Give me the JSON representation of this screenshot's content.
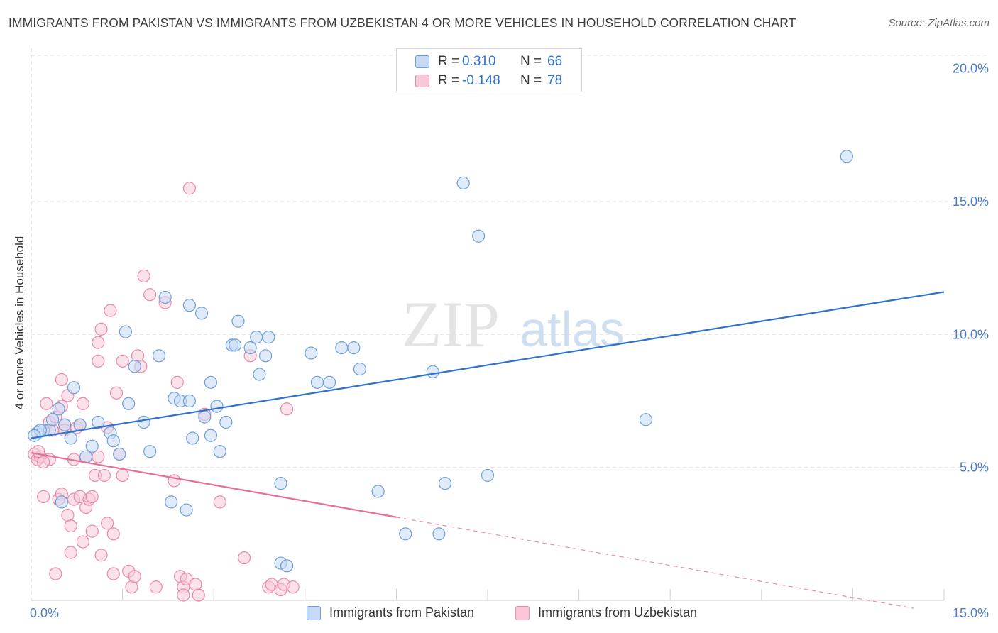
{
  "header": {
    "title": "IMMIGRANTS FROM PAKISTAN VS IMMIGRANTS FROM UZBEKISTAN 4 OR MORE VEHICLES IN HOUSEHOLD CORRELATION CHART",
    "source": "Source: ZipAtlas.com"
  },
  "watermark": {
    "zip": "ZIP",
    "atlas": "atlas"
  },
  "colors": {
    "blue_fill": "#c6daf5",
    "blue_stroke": "#6f9fd8",
    "blue_line": "#2f72cc",
    "pink_fill": "#f7c9d8",
    "pink_stroke": "#e98aaa",
    "pink_line": "#e46f98",
    "tick_text": "#4a7cc7",
    "grid": "#e2e2e2"
  },
  "legend": {
    "rows": [
      {
        "r_label": "R =",
        "r_value": "0.310",
        "n_label": "N =",
        "n_value": "66"
      },
      {
        "r_label": "R =",
        "r_value": "-0.148",
        "n_label": "N =",
        "n_value": "78"
      }
    ]
  },
  "bottom_legend": [
    {
      "label": "Immigrants from Pakistan"
    },
    {
      "label": "Immigrants from Uzbekistan"
    }
  ],
  "chart_data": {
    "type": "scatter",
    "title": "IMMIGRANTS FROM PAKISTAN VS IMMIGRANTS FROM UZBEKISTAN 4 OR MORE VEHICLES IN HOUSEHOLD CORRELATION CHART",
    "xlabel": "",
    "ylabel": "4 or more Vehicles in Household",
    "xlim": [
      0,
      15
    ],
    "ylim": [
      0,
      20.5
    ],
    "x_tick_labels": [
      {
        "value": 0,
        "label": "0.0%"
      },
      {
        "value": 15,
        "label": "15.0%"
      }
    ],
    "y_tick_labels": [
      {
        "value": 5,
        "label": "5.0%"
      },
      {
        "value": 10,
        "label": "10.0%"
      },
      {
        "value": 15,
        "label": "15.0%"
      },
      {
        "value": 20,
        "label": "20.0%"
      }
    ],
    "x_grid_values": [
      1.5,
      3.0,
      4.5,
      6.0,
      7.5,
      9.0,
      10.5,
      12.0,
      13.5,
      15.0
    ],
    "y_grid_values": [
      5,
      10,
      15,
      20.5
    ],
    "series": [
      {
        "name": "Immigrants from Pakistan",
        "color": "blue",
        "r": 0.31,
        "n": 66,
        "trend": {
          "x": [
            0,
            15
          ],
          "y": [
            6.1,
            11.6
          ],
          "dashed_from": null
        },
        "points": [
          [
            0.1,
            6.3
          ],
          [
            0.2,
            6.4
          ],
          [
            0.3,
            6.4
          ],
          [
            0.35,
            6.8
          ],
          [
            0.45,
            7.2
          ],
          [
            0.55,
            6.6
          ],
          [
            0.65,
            6.1
          ],
          [
            0.7,
            8.0
          ],
          [
            0.8,
            6.6
          ],
          [
            0.9,
            5.4
          ],
          [
            1.0,
            5.8
          ],
          [
            1.1,
            6.7
          ],
          [
            1.3,
            6.3
          ],
          [
            1.45,
            5.5
          ],
          [
            1.55,
            10.1
          ],
          [
            1.6,
            7.4
          ],
          [
            1.7,
            8.8
          ],
          [
            1.85,
            6.7
          ],
          [
            1.95,
            5.6
          ],
          [
            2.1,
            9.2
          ],
          [
            2.2,
            11.4
          ],
          [
            2.3,
            3.7
          ],
          [
            2.35,
            7.6
          ],
          [
            2.45,
            7.5
          ],
          [
            2.55,
            3.4
          ],
          [
            2.6,
            7.5
          ],
          [
            2.6,
            11.1
          ],
          [
            2.65,
            6.1
          ],
          [
            2.8,
            10.8
          ],
          [
            2.85,
            6.9
          ],
          [
            2.95,
            6.2
          ],
          [
            2.95,
            8.2
          ],
          [
            3.05,
            7.3
          ],
          [
            3.1,
            5.6
          ],
          [
            3.2,
            6.7
          ],
          [
            3.3,
            9.6
          ],
          [
            3.35,
            9.6
          ],
          [
            3.4,
            10.5
          ],
          [
            3.6,
            9.5
          ],
          [
            3.7,
            9.9
          ],
          [
            3.75,
            8.5
          ],
          [
            3.85,
            9.2
          ],
          [
            3.9,
            9.9
          ],
          [
            4.1,
            1.4
          ],
          [
            4.1,
            4.4
          ],
          [
            4.2,
            1.3
          ],
          [
            4.6,
            9.3
          ],
          [
            4.7,
            8.2
          ],
          [
            4.9,
            8.2
          ],
          [
            5.1,
            9.5
          ],
          [
            5.3,
            9.5
          ],
          [
            5.4,
            8.7
          ],
          [
            5.7,
            4.1
          ],
          [
            6.15,
            2.5
          ],
          [
            6.6,
            8.6
          ],
          [
            6.7,
            2.5
          ],
          [
            6.8,
            4.4
          ],
          [
            7.1,
            15.7
          ],
          [
            7.35,
            13.7
          ],
          [
            7.5,
            4.7
          ],
          [
            10.1,
            6.8
          ],
          [
            13.4,
            16.7
          ],
          [
            0.15,
            6.4
          ],
          [
            0.05,
            6.2
          ],
          [
            0.5,
            3.7
          ],
          [
            1.35,
            6.0
          ]
        ]
      },
      {
        "name": "Immigrants from Uzbekistan",
        "color": "pink",
        "r": -0.148,
        "n": 78,
        "trend": {
          "x": [
            0,
            15
          ],
          "y": [
            5.55,
            -0.5
          ],
          "dashed_from": 6.0
        },
        "points": [
          [
            0.05,
            5.5
          ],
          [
            0.1,
            5.3
          ],
          [
            0.15,
            5.4
          ],
          [
            0.2,
            3.9
          ],
          [
            0.25,
            7.4
          ],
          [
            0.3,
            6.7
          ],
          [
            0.3,
            5.3
          ],
          [
            0.35,
            6.4
          ],
          [
            0.4,
            6.9
          ],
          [
            0.4,
            1.0
          ],
          [
            0.45,
            3.8
          ],
          [
            0.5,
            7.3
          ],
          [
            0.5,
            4.0
          ],
          [
            0.5,
            8.3
          ],
          [
            0.55,
            6.6
          ],
          [
            0.6,
            3.2
          ],
          [
            0.6,
            7.7
          ],
          [
            0.65,
            2.8
          ],
          [
            0.65,
            1.8
          ],
          [
            0.7,
            3.8
          ],
          [
            0.75,
            6.5
          ],
          [
            0.8,
            6.6
          ],
          [
            0.8,
            3.9
          ],
          [
            0.85,
            2.2
          ],
          [
            0.85,
            7.4
          ],
          [
            0.9,
            3.5
          ],
          [
            0.9,
            5.4
          ],
          [
            0.95,
            3.8
          ],
          [
            1.0,
            3.9
          ],
          [
            1.0,
            2.6
          ],
          [
            1.05,
            4.7
          ],
          [
            1.1,
            5.4
          ],
          [
            1.1,
            9.0
          ],
          [
            1.1,
            9.7
          ],
          [
            1.15,
            1.7
          ],
          [
            1.15,
            10.2
          ],
          [
            1.2,
            4.7
          ],
          [
            1.25,
            2.9
          ],
          [
            1.25,
            6.5
          ],
          [
            1.3,
            10.9
          ],
          [
            1.35,
            1.0
          ],
          [
            1.35,
            2.5
          ],
          [
            1.4,
            7.8
          ],
          [
            1.45,
            5.5
          ],
          [
            1.5,
            9.0
          ],
          [
            1.5,
            4.7
          ],
          [
            1.6,
            1.1
          ],
          [
            1.65,
            0.5
          ],
          [
            1.7,
            0.9
          ],
          [
            1.75,
            9.2
          ],
          [
            1.8,
            8.8
          ],
          [
            1.85,
            12.2
          ],
          [
            1.95,
            11.5
          ],
          [
            2.05,
            0.5
          ],
          [
            2.2,
            11.2
          ],
          [
            2.35,
            4.5
          ],
          [
            2.4,
            8.2
          ],
          [
            2.45,
            0.9
          ],
          [
            2.5,
            0.5
          ],
          [
            2.5,
            0.2
          ],
          [
            2.55,
            0.8
          ],
          [
            2.6,
            15.5
          ],
          [
            2.7,
            0.6
          ],
          [
            2.75,
            0.2
          ],
          [
            2.85,
            7.0
          ],
          [
            3.1,
            3.7
          ],
          [
            3.5,
            1.6
          ],
          [
            3.6,
            9.2
          ],
          [
            3.9,
            0.5
          ],
          [
            3.95,
            0.6
          ],
          [
            4.1,
            0.4
          ],
          [
            4.15,
            0.6
          ],
          [
            4.2,
            7.2
          ],
          [
            4.3,
            0.5
          ],
          [
            0.2,
            5.2
          ],
          [
            0.12,
            5.6
          ],
          [
            0.55,
            6.4
          ],
          [
            0.7,
            5.3
          ]
        ]
      }
    ]
  }
}
